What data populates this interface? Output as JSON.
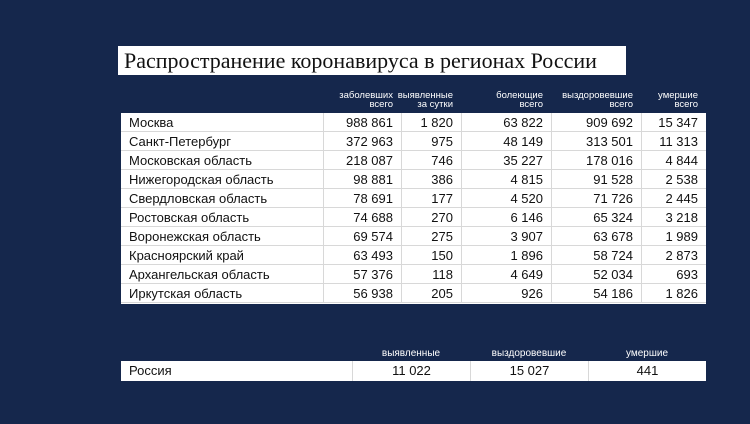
{
  "title": "Распространение коронавируса в регионах России",
  "table": {
    "columns": [
      [
        "заболевших",
        "всего"
      ],
      [
        "выявленные",
        "за сутки"
      ],
      [
        "болеющие",
        "всего"
      ],
      [
        "выздоровевшие",
        "всего"
      ],
      [
        "умершие",
        "всего"
      ]
    ],
    "rows": [
      [
        "Москва",
        "988 861",
        "1 820",
        "63 822",
        "909 692",
        "15 347"
      ],
      [
        "Санкт-Петербург",
        "372 963",
        "975",
        "48 149",
        "313 501",
        "11 313"
      ],
      [
        "Московская область",
        "218 087",
        "746",
        "35 227",
        "178 016",
        "4 844"
      ],
      [
        "Нижегородская область",
        "98 881",
        "386",
        "4 815",
        "91 528",
        "2 538"
      ],
      [
        "Свердловская область",
        "78 691",
        "177",
        "4 520",
        "71 726",
        "2 445"
      ],
      [
        "Ростовская область",
        "74 688",
        "270",
        "6 146",
        "65 324",
        "3 218"
      ],
      [
        "Воронежская область",
        "69 574",
        "275",
        "3 907",
        "63 678",
        "1 989"
      ],
      [
        "Красноярский край",
        "63 493",
        "150",
        "1 896",
        "58 724",
        "2 873"
      ],
      [
        "Архангельская область",
        "57 376",
        "118",
        "4 649",
        "52 034",
        "693"
      ],
      [
        "Иркутская область",
        "56 938",
        "205",
        "926",
        "54 186",
        "1 826"
      ]
    ]
  },
  "summary": {
    "columns": [
      "выявленные",
      "выздоровевшие",
      "умершие"
    ],
    "row": [
      "Россия",
      "11 022",
      "15 027",
      "441"
    ]
  }
}
